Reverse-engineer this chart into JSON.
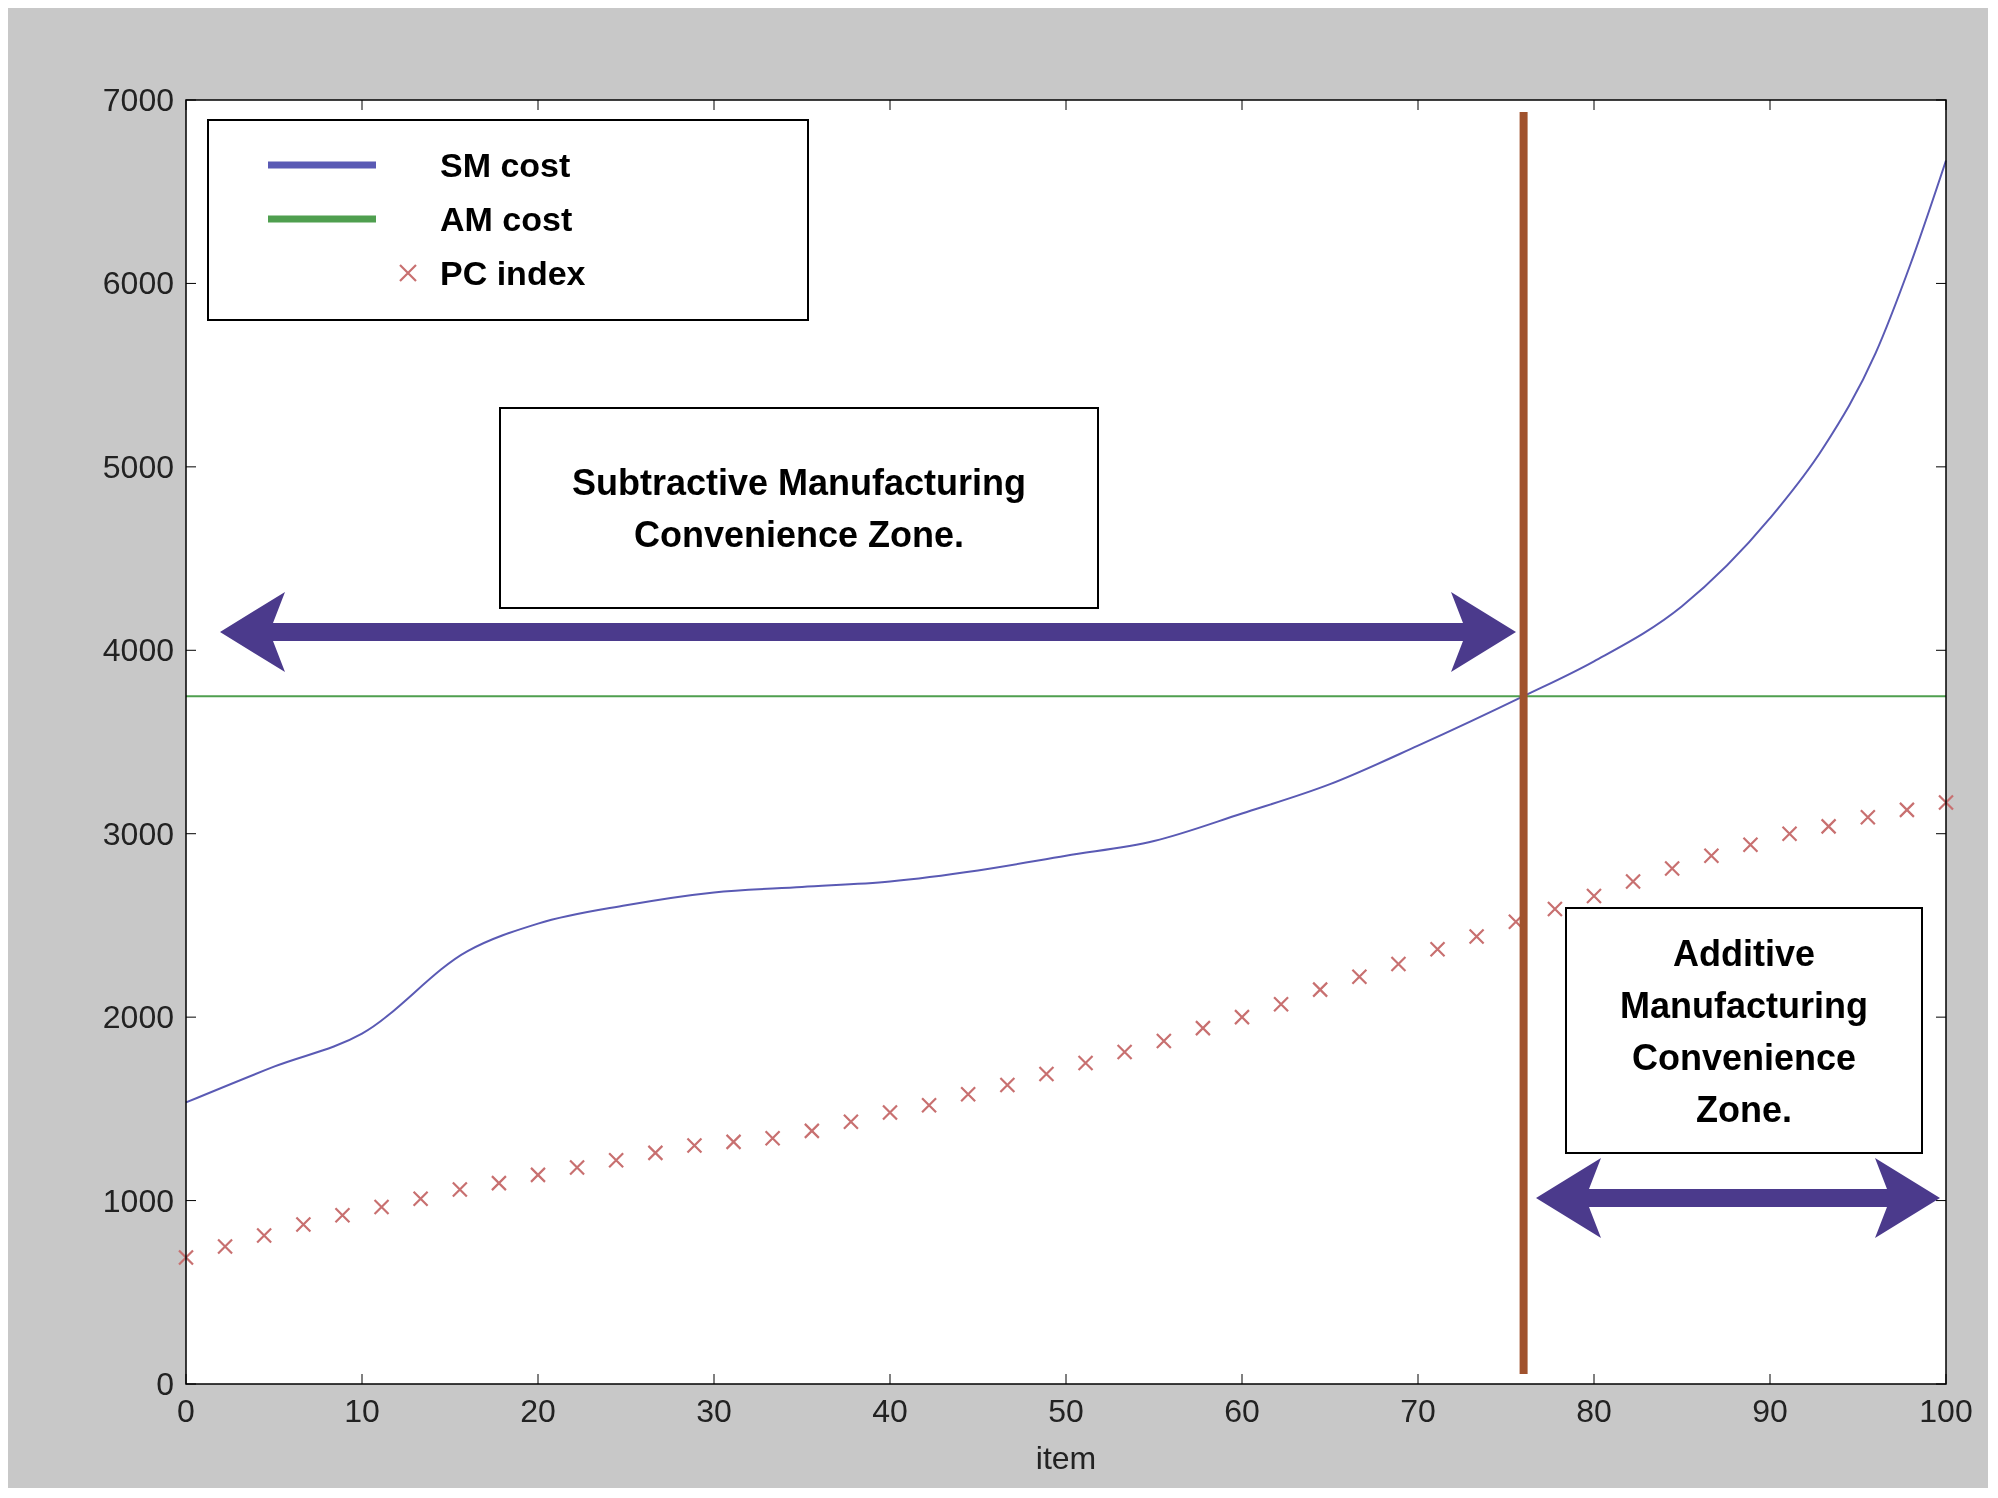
{
  "chart_data": {
    "type": "line",
    "xlabel": "item",
    "xlim": [
      0,
      100
    ],
    "ylim": [
      0,
      7000
    ],
    "xticks": [
      0,
      10,
      20,
      30,
      40,
      50,
      60,
      70,
      80,
      90,
      100
    ],
    "yticks": [
      0,
      1000,
      2000,
      3000,
      4000,
      5000,
      6000,
      7000
    ],
    "grid": false,
    "legend": "top left",
    "series": [
      {
        "name": "SM cost",
        "color": "#5a5ab4",
        "line_style": "solid",
        "x": [
          0,
          5,
          10,
          16,
          20,
          25,
          30,
          35,
          40,
          45,
          50,
          55,
          60,
          65,
          70,
          76,
          80,
          85,
          90,
          93,
          96,
          98,
          100
        ],
        "values": [
          1535,
          1730,
          1910,
          2360,
          2510,
          2610,
          2680,
          2710,
          2740,
          2800,
          2880,
          2960,
          3110,
          3270,
          3480,
          3750,
          3940,
          4240,
          4720,
          5100,
          5620,
          6110,
          6670
        ]
      },
      {
        "name": "AM cost",
        "color": "#4f9f4f",
        "line_style": "solid",
        "x": [
          0,
          100
        ],
        "values": [
          3750,
          3750
        ]
      },
      {
        "name": "PC index",
        "type": "scatter",
        "color": "#c87070",
        "marker": "cross",
        "x": [
          0,
          2.22,
          4.44,
          6.67,
          8.89,
          11.11,
          13.33,
          15.56,
          17.78,
          20,
          22.22,
          24.44,
          26.67,
          28.89,
          31.11,
          33.33,
          35.56,
          37.78,
          40,
          42.22,
          44.44,
          46.67,
          48.89,
          51.11,
          53.33,
          55.56,
          57.78,
          60,
          62.22,
          64.44,
          66.67,
          68.89,
          71.11,
          73.33,
          75.56,
          77.78,
          80,
          82.22,
          84.44,
          86.67,
          88.89,
          91.11,
          93.33,
          95.56,
          97.78,
          100
        ],
        "values": [
          690,
          750,
          810,
          870,
          920,
          965,
          1010,
          1060,
          1095,
          1140,
          1180,
          1220,
          1260,
          1300,
          1320,
          1340,
          1380,
          1430,
          1480,
          1520,
          1580,
          1630,
          1690,
          1750,
          1810,
          1870,
          1940,
          2000,
          2070,
          2150,
          2220,
          2290,
          2370,
          2440,
          2520,
          2590,
          2660,
          2740,
          2810,
          2880,
          2940,
          3000,
          3040,
          3090,
          3130,
          3170
        ]
      }
    ],
    "ref_lines": [
      {
        "axis": "x",
        "value": 76,
        "color": "#a0522d"
      }
    ],
    "annotations": [
      "Subtractive Manufacturing Convenience Zone.",
      "Additive Manufacturing Convenience Zone."
    ]
  }
}
